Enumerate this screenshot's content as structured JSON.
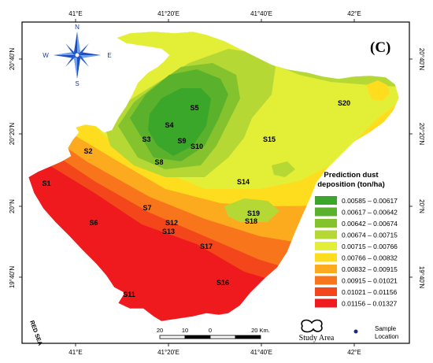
{
  "map": {
    "panel_label": "(C)",
    "sea_label": "RED SEA",
    "longitude_ticks": [
      "41°E",
      "41°20'E",
      "41°40'E",
      "42°E"
    ],
    "latitude_ticks": [
      "20°40'N",
      "20°20'N",
      "20°N",
      "19°40'N"
    ],
    "compass": {
      "north": "N",
      "south": "S",
      "east": "E",
      "west": "W"
    },
    "scale_bar": {
      "labels": [
        "20",
        "10",
        "0",
        "20 Km."
      ]
    },
    "study_area_label": "Study Area",
    "sample_location_label": "Sample Location",
    "sample_sites": [
      "S1",
      "S2",
      "S3",
      "S4",
      "S5",
      "S6",
      "S7",
      "S8",
      "S9",
      "S10",
      "S11",
      "S12",
      "S13",
      "S14",
      "S15",
      "S16",
      "S17",
      "S18",
      "S19",
      "S20"
    ],
    "legend": {
      "title_line1": "Prediction dust",
      "title_line2": "deposition (ton/ha)",
      "classes": [
        {
          "range": "0.00585 – 0.00617",
          "color": "#3aa62a"
        },
        {
          "range": "0.00617 – 0.00642",
          "color": "#5ab12c"
        },
        {
          "range": "0.00642 – 0.00674",
          "color": "#84c22e"
        },
        {
          "range": "0.00674 – 0.00715",
          "color": "#b5d834"
        },
        {
          "range": "0.00715 – 0.00766",
          "color": "#e3ef36"
        },
        {
          "range": "0.00766 – 0.00832",
          "color": "#fedc1e"
        },
        {
          "range": "0.00832 – 0.00915",
          "color": "#fcaa1e"
        },
        {
          "range": "0.00915 – 0.01021",
          "color": "#f9751c"
        },
        {
          "range": "0.01021 – 0.01156",
          "color": "#f3461a"
        },
        {
          "range": "0.01156 – 0.01327",
          "color": "#ee1a1e"
        }
      ]
    }
  }
}
